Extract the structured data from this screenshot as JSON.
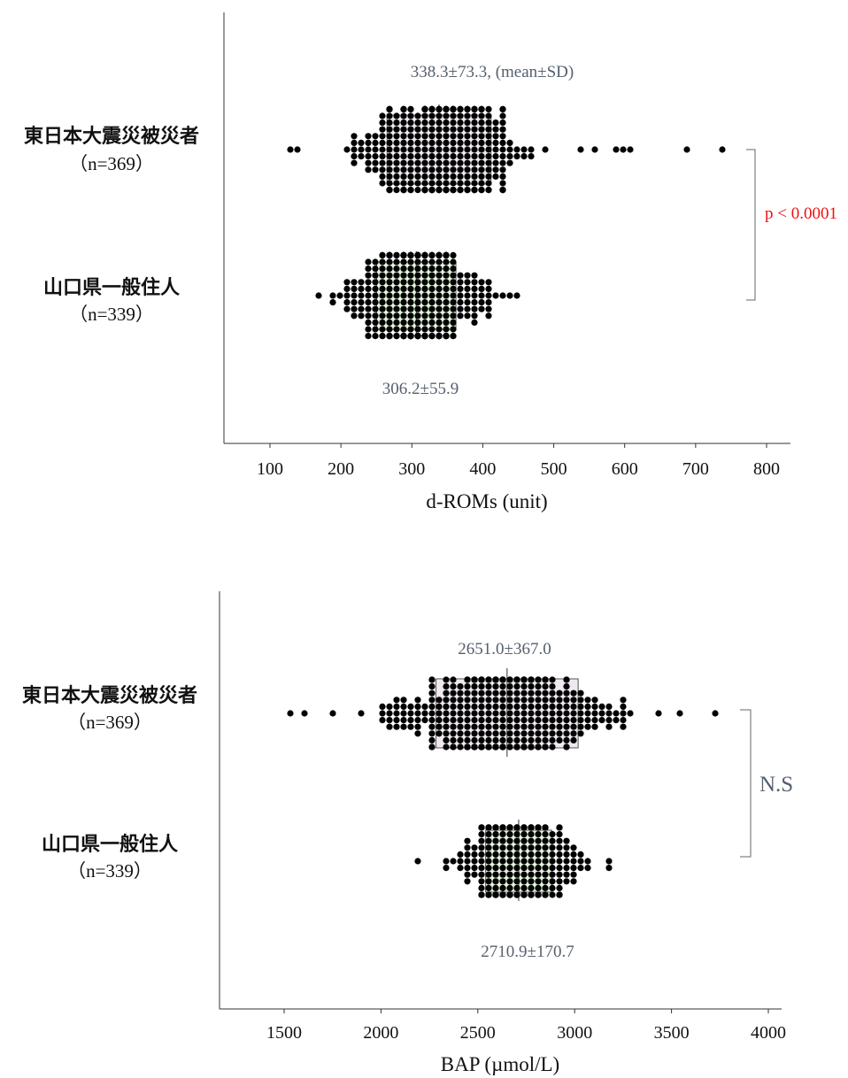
{
  "chart_data": [
    {
      "type": "scatter",
      "subtype": "horizontal beeswarm with mean±SD box",
      "xlabel": "d-ROMs (unit)",
      "xticks": [
        100,
        200,
        300,
        400,
        500,
        600,
        700,
        800
      ],
      "xlim": [
        35,
        830
      ],
      "annotation": "338.3±73.3, (mean±SD)",
      "groups": [
        {
          "label": "東日本大震災被災者",
          "n_label": "（n=369）",
          "mean": 338.3,
          "sd": 73.3,
          "stat_text": "338.3±73.3, (mean±SD)",
          "box_color": "#efe9ef",
          "outliers": [
            128,
            142,
            534,
            562,
            588,
            596,
            606,
            688,
            737
          ],
          "range": [
            205,
            500
          ]
        },
        {
          "label": "山口県一般住人",
          "n_label": "（n=339）",
          "mean": 306.2,
          "sd": 55.9,
          "stat_text": "306.2±55.9",
          "box_color": "#e3f4dc",
          "outliers": [
            170,
            453
          ],
          "range": [
            182,
            445
          ]
        }
      ],
      "comparison": {
        "text": "p < 0.0001",
        "color": "#ee1111"
      }
    },
    {
      "type": "scatter",
      "subtype": "horizontal beeswarm with mean±SD box",
      "xlabel": "BAP (µmol/L)",
      "xticks": [
        1500,
        2000,
        2500,
        3000,
        3500,
        4000
      ],
      "xlim": [
        1180,
        4060
      ],
      "groups": [
        {
          "label": "東日本大震災被災者",
          "n_label": "（n=369）",
          "mean": 2651.0,
          "sd": 367.0,
          "stat_text": "2651.0±367.0",
          "box_color": "#efe9ef",
          "outliers": [
            1520,
            1600,
            2200,
            3420,
            3550,
            3720
          ],
          "range": [
            1560,
            3300
          ]
        },
        {
          "label": "山口県一般住人",
          "n_label": "（n=339）",
          "mean": 2710.9,
          "sd": 170.7,
          "stat_text": "2710.9±170.7",
          "box_color": "#e3f4dc",
          "outliers": [
            2200,
            3190
          ],
          "range": [
            2300,
            3210
          ]
        }
      ],
      "comparison": {
        "text": "N.S",
        "color": "#55606e"
      }
    }
  ]
}
